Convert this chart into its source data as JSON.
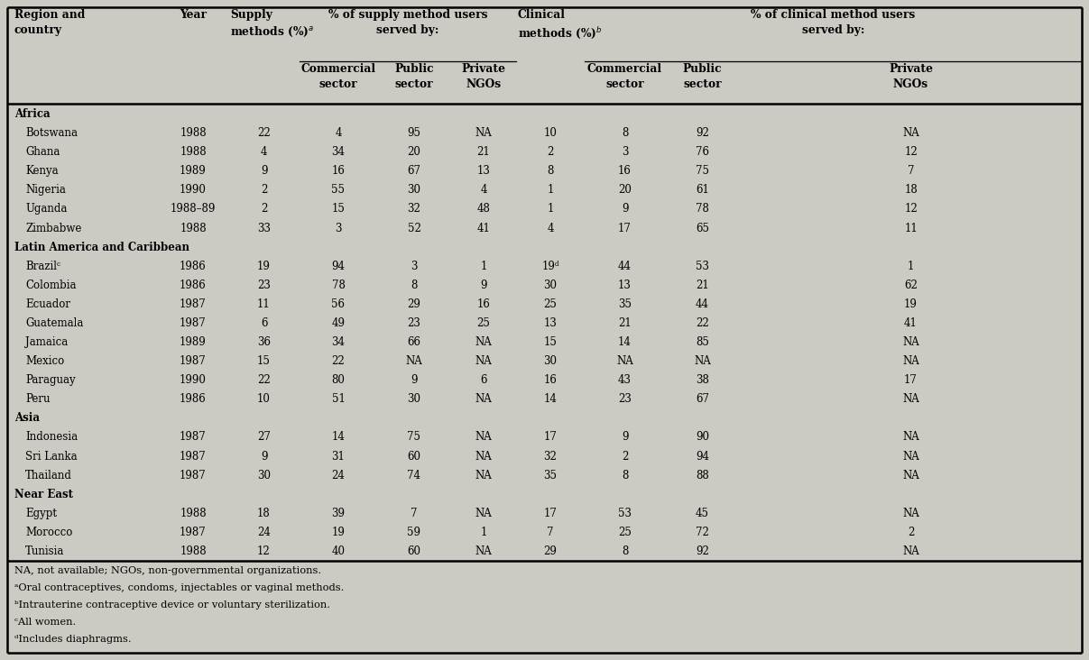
{
  "bg_color": "#cdc9c3",
  "regions": [
    {
      "name": "Africa",
      "is_region": true
    },
    {
      "name": "Botswana",
      "year": "1988",
      "sm": "22",
      "sm_com": "4",
      "sm_pub": "95",
      "sm_ngo": "NA",
      "cm": "10",
      "cm_com": "8",
      "cm_pub": "92",
      "cm_ngo": "NA"
    },
    {
      "name": "Ghana",
      "year": "1988",
      "sm": "4",
      "sm_com": "34",
      "sm_pub": "20",
      "sm_ngo": "21",
      "cm": "2",
      "cm_com": "3",
      "cm_pub": "76",
      "cm_ngo": "12"
    },
    {
      "name": "Kenya",
      "year": "1989",
      "sm": "9",
      "sm_com": "16",
      "sm_pub": "67",
      "sm_ngo": "13",
      "cm": "8",
      "cm_com": "16",
      "cm_pub": "75",
      "cm_ngo": "7"
    },
    {
      "name": "Nigeria",
      "year": "1990",
      "sm": "2",
      "sm_com": "55",
      "sm_pub": "30",
      "sm_ngo": "4",
      "cm": "1",
      "cm_com": "20",
      "cm_pub": "61",
      "cm_ngo": "18"
    },
    {
      "name": "Uganda",
      "year": "1988–89",
      "sm": "2",
      "sm_com": "15",
      "sm_pub": "32",
      "sm_ngo": "48",
      "cm": "1",
      "cm_com": "9",
      "cm_pub": "78",
      "cm_ngo": "12"
    },
    {
      "name": "Zimbabwe",
      "year": "1988",
      "sm": "33",
      "sm_com": "3",
      "sm_pub": "52",
      "sm_ngo": "41",
      "cm": "4",
      "cm_com": "17",
      "cm_pub": "65",
      "cm_ngo": "11"
    },
    {
      "name": "Latin America and Caribbean",
      "is_region": true
    },
    {
      "name": "Brazilᶜ",
      "year": "1986",
      "sm": "19",
      "sm_com": "94",
      "sm_pub": "3",
      "sm_ngo": "1",
      "cm": "19ᵈ",
      "cm_com": "44",
      "cm_pub": "53",
      "cm_ngo": "1"
    },
    {
      "name": "Colombia",
      "year": "1986",
      "sm": "23",
      "sm_com": "78",
      "sm_pub": "8",
      "sm_ngo": "9",
      "cm": "30",
      "cm_com": "13",
      "cm_pub": "21",
      "cm_ngo": "62"
    },
    {
      "name": "Ecuador",
      "year": "1987",
      "sm": "11",
      "sm_com": "56",
      "sm_pub": "29",
      "sm_ngo": "16",
      "cm": "25",
      "cm_com": "35",
      "cm_pub": "44",
      "cm_ngo": "19"
    },
    {
      "name": "Guatemala",
      "year": "1987",
      "sm": "6",
      "sm_com": "49",
      "sm_pub": "23",
      "sm_ngo": "25",
      "cm": "13",
      "cm_com": "21",
      "cm_pub": "22",
      "cm_ngo": "41"
    },
    {
      "name": "Jamaica",
      "year": "1989",
      "sm": "36",
      "sm_com": "34",
      "sm_pub": "66",
      "sm_ngo": "NA",
      "cm": "15",
      "cm_com": "14",
      "cm_pub": "85",
      "cm_ngo": "NA"
    },
    {
      "name": "Mexico",
      "year": "1987",
      "sm": "15",
      "sm_com": "22",
      "sm_pub": "NA",
      "sm_ngo": "NA",
      "cm": "30",
      "cm_com": "NA",
      "cm_pub": "NA",
      "cm_ngo": "NA"
    },
    {
      "name": "Paraguay",
      "year": "1990",
      "sm": "22",
      "sm_com": "80",
      "sm_pub": "9",
      "sm_ngo": "6",
      "cm": "16",
      "cm_com": "43",
      "cm_pub": "38",
      "cm_ngo": "17"
    },
    {
      "name": "Peru",
      "year": "1986",
      "sm": "10",
      "sm_com": "51",
      "sm_pub": "30",
      "sm_ngo": "NA",
      "cm": "14",
      "cm_com": "23",
      "cm_pub": "67",
      "cm_ngo": "NA"
    },
    {
      "name": "Asia",
      "is_region": true
    },
    {
      "name": "Indonesia",
      "year": "1987",
      "sm": "27",
      "sm_com": "14",
      "sm_pub": "75",
      "sm_ngo": "NA",
      "cm": "17",
      "cm_com": "9",
      "cm_pub": "90",
      "cm_ngo": "NA"
    },
    {
      "name": "Sri Lanka",
      "year": "1987",
      "sm": "9",
      "sm_com": "31",
      "sm_pub": "60",
      "sm_ngo": "NA",
      "cm": "32",
      "cm_com": "2",
      "cm_pub": "94",
      "cm_ngo": "NA"
    },
    {
      "name": "Thailand",
      "year": "1987",
      "sm": "30",
      "sm_com": "24",
      "sm_pub": "74",
      "sm_ngo": "NA",
      "cm": "35",
      "cm_com": "8",
      "cm_pub": "88",
      "cm_ngo": "NA"
    },
    {
      "name": "Near East",
      "is_region": true
    },
    {
      "name": "Egypt",
      "year": "1988",
      "sm": "18",
      "sm_com": "39",
      "sm_pub": "7",
      "sm_ngo": "NA",
      "cm": "17",
      "cm_com": "53",
      "cm_pub": "45",
      "cm_ngo": "NA"
    },
    {
      "name": "Morocco",
      "year": "1987",
      "sm": "24",
      "sm_com": "19",
      "sm_pub": "59",
      "sm_ngo": "1",
      "cm": "7",
      "cm_com": "25",
      "cm_pub": "72",
      "cm_ngo": "2"
    },
    {
      "name": "Tunisia",
      "year": "1988",
      "sm": "12",
      "sm_com": "40",
      "sm_pub": "60",
      "sm_ngo": "NA",
      "cm": "29",
      "cm_com": "8",
      "cm_pub": "92",
      "cm_ngo": "NA"
    }
  ],
  "footnotes": [
    "NA, not available; NGOs, non-governmental organizations.",
    "ᵃOral contraceptives, condoms, injectables or vaginal methods.",
    "ᵇIntrauterine contraceptive device or voluntary sterilization.",
    "ᶜAll women.",
    "ᵈIncludes diaphragms."
  ]
}
